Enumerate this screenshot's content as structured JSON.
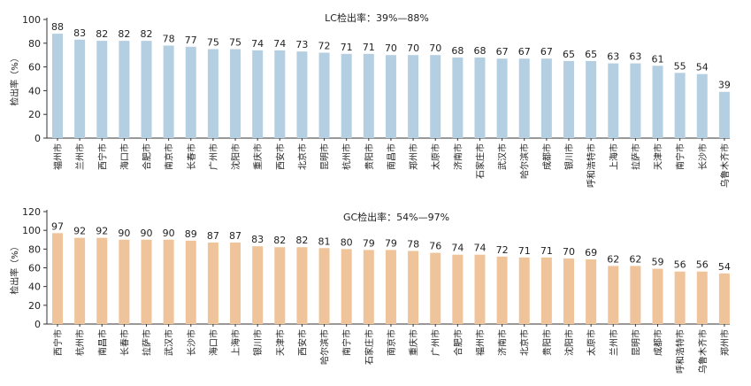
{
  "colors": {
    "lc_bar": "#b5cfe2",
    "gc_bar": "#f0c49a",
    "axis": "#333333"
  },
  "chart_data": [
    {
      "type": "bar",
      "title": "LC检出率：39%—88%",
      "ylabel": "检出率（%）",
      "ylim": [
        0,
        100
      ],
      "yticks": [
        0,
        20,
        40,
        60,
        80,
        100
      ],
      "categories": [
        "福州市",
        "兰州市",
        "西宁市",
        "海口市",
        "合肥市",
        "南京市",
        "长春市",
        "广州市",
        "沈阳市",
        "重庆市",
        "西安市",
        "北京市",
        "昆明市",
        "杭州市",
        "贵阳市",
        "南昌市",
        "郑州市",
        "太原市",
        "济南市",
        "石家庄市",
        "武汉市",
        "哈尔滨市",
        "成都市",
        "银川市",
        "呼和浩特市",
        "上海市",
        "拉萨市",
        "天津市",
        "南宁市",
        "长沙市",
        "乌鲁木齐市"
      ],
      "values": [
        88,
        83,
        82,
        82,
        82,
        78,
        77,
        75,
        75,
        74,
        74,
        73,
        72,
        71,
        71,
        70,
        70,
        70,
        68,
        68,
        67,
        67,
        67,
        65,
        65,
        63,
        63,
        61,
        55,
        54,
        39
      ],
      "grid": false
    },
    {
      "type": "bar",
      "title": "GC检出率：54%—97%",
      "ylabel": "检出率（%）",
      "ylim": [
        0,
        120
      ],
      "yticks": [
        0,
        20,
        40,
        60,
        80,
        100,
        120
      ],
      "categories": [
        "西宁市",
        "杭州市",
        "南昌市",
        "长春市",
        "拉萨市",
        "武汉市",
        "长沙市",
        "海口市",
        "上海市",
        "银川市",
        "天津市",
        "西安市",
        "哈尔滨市",
        "南宁市",
        "石家庄市",
        "南京市",
        "重庆市",
        "广州市",
        "合肥市",
        "福州市",
        "济南市",
        "北京市",
        "贵阳市",
        "沈阳市",
        "太原市",
        "兰州市",
        "昆明市",
        "成都市",
        "呼和浩特市",
        "乌鲁木齐市",
        "郑州市"
      ],
      "values": [
        97,
        92,
        92,
        90,
        90,
        90,
        89,
        87,
        87,
        83,
        82,
        82,
        81,
        80,
        79,
        79,
        78,
        76,
        74,
        74,
        72,
        71,
        71,
        70,
        69,
        62,
        62,
        59,
        56,
        56,
        54
      ],
      "grid": false
    }
  ]
}
